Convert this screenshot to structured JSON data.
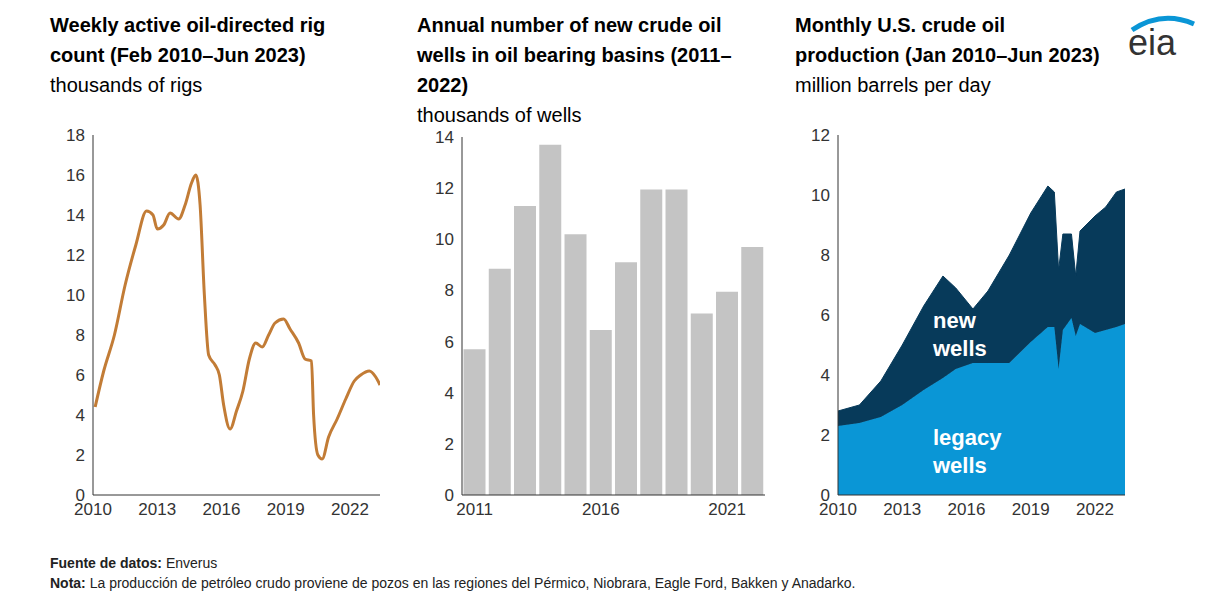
{
  "chart_data": [
    {
      "type": "line",
      "title": "Weekly active oil-directed rig count (Feb 2010–Jun 2023)",
      "subtitle": "thousands of rigs",
      "x": [
        2010.1,
        2010.5,
        2011.0,
        2011.5,
        2012.0,
        2012.5,
        2012.8,
        2013.0,
        2013.3,
        2013.6,
        2014.0,
        2014.3,
        2014.6,
        2014.8,
        2015.0,
        2015.2,
        2015.4,
        2015.7,
        2015.9,
        2016.1,
        2016.4,
        2016.7,
        2017.0,
        2017.3,
        2017.6,
        2017.9,
        2018.2,
        2018.5,
        2018.9,
        2019.2,
        2019.6,
        2019.9,
        2020.2,
        2020.3,
        2020.5,
        2020.7,
        2021.0,
        2021.4,
        2021.8,
        2022.2,
        2022.5,
        2022.9,
        2023.2,
        2023.4
      ],
      "values": [
        4.4,
        6.2,
        8.0,
        10.5,
        12.5,
        14.2,
        14.0,
        13.3,
        13.5,
        14.1,
        13.8,
        14.5,
        15.6,
        16.0,
        14.5,
        10.0,
        7.0,
        6.5,
        6.0,
        4.5,
        3.3,
        4.2,
        5.2,
        6.8,
        7.6,
        7.4,
        8.0,
        8.6,
        8.8,
        8.3,
        7.6,
        6.8,
        6.7,
        4.0,
        2.0,
        1.8,
        2.9,
        3.8,
        4.8,
        5.7,
        6.0,
        6.2,
        5.9,
        5.5
      ],
      "color": "#c27c36",
      "xlim": [
        2010,
        2023.4
      ],
      "xticks": [
        2010,
        2013,
        2016,
        2019,
        2022
      ],
      "ylim": [
        0,
        18
      ],
      "yticks": [
        0,
        2,
        4,
        6,
        8,
        10,
        12,
        14,
        16,
        18
      ],
      "grid": false
    },
    {
      "type": "bar",
      "title": "Annual number of new crude oil wells in oil bearing basins (2011–2022)",
      "subtitle": "thousands of wells",
      "categories": [
        "2011",
        null,
        null,
        null,
        null,
        "2016",
        null,
        null,
        null,
        null,
        "2021",
        null
      ],
      "values": [
        5.7,
        8.85,
        11.3,
        13.7,
        10.2,
        6.45,
        9.1,
        11.95,
        11.95,
        7.1,
        7.95,
        9.7
      ],
      "color": "#c4c4c4",
      "ylim": [
        0,
        14
      ],
      "yticks": [
        0,
        2,
        4,
        6,
        8,
        10,
        12,
        14
      ],
      "grid": false
    },
    {
      "type": "area",
      "title": "Monthly U.S. crude oil production (Jan 2010–Jun 2023)",
      "subtitle": "million barrels per day",
      "stacked": true,
      "x": [
        2010.0,
        2011.0,
        2012.0,
        2013.0,
        2014.0,
        2014.9,
        2015.5,
        2016.3,
        2017.0,
        2018.0,
        2019.0,
        2019.8,
        2020.1,
        2020.3,
        2020.5,
        2020.9,
        2021.1,
        2021.3,
        2022.0,
        2022.5,
        2023.0,
        2023.4
      ],
      "series": [
        {
          "name": "legacy wells",
          "color": "#0a96d6",
          "values": [
            2.3,
            2.4,
            2.6,
            3.0,
            3.5,
            3.9,
            4.2,
            4.4,
            4.4,
            4.4,
            5.1,
            5.6,
            5.6,
            4.2,
            5.5,
            5.9,
            5.3,
            5.7,
            5.4,
            5.5,
            5.6,
            5.7
          ]
        },
        {
          "name": "new wells",
          "color": "#073a5a",
          "values": [
            0.5,
            0.6,
            1.2,
            2.0,
            2.8,
            3.4,
            2.7,
            1.8,
            2.4,
            3.6,
            4.3,
            4.7,
            4.5,
            3.3,
            3.2,
            2.8,
            2.0,
            3.1,
            3.9,
            4.1,
            4.5,
            4.5
          ]
        }
      ],
      "xlim": [
        2010,
        2023.4
      ],
      "xticks": [
        2010,
        2013,
        2016,
        2019,
        2022
      ],
      "ylim": [
        0,
        12
      ],
      "yticks": [
        0,
        2,
        4,
        6,
        8,
        10,
        12
      ],
      "grid": false
    }
  ],
  "logo": "eia",
  "footer": {
    "source_label": "Fuente de datos:",
    "source": "Enverus",
    "note_label": "Nota:",
    "note": "La producción de petróleo crudo proviene de pozos en las regiones del Pérmico, Niobrara, Eagle Ford, Bakken y Anadarko."
  }
}
